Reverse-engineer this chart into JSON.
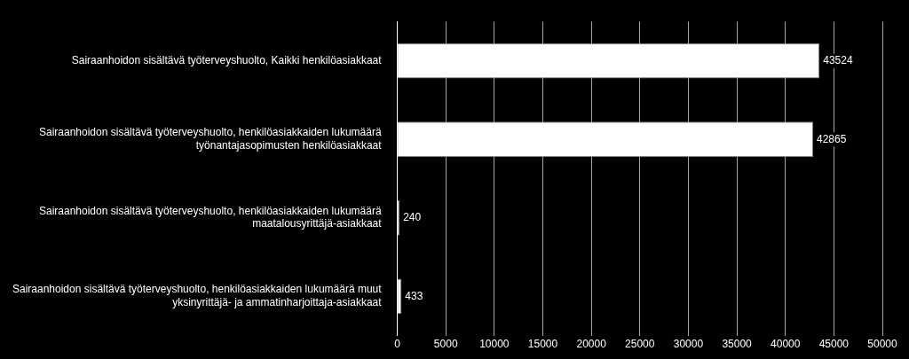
{
  "chart_data": {
    "type": "bar",
    "orientation": "horizontal",
    "categories": [
      "Sairaanhoidon sisältävä työterveyshuolto, Kaikki henkilöasiakkaat",
      "Sairaanhoidon sisältävä työterveyshuolto, henkilöasiakkaiden lukumäärä\ntyönantajasopimusten henkilöasiakkaat",
      "Sairaanhoidon sisältävä työterveyshuolto, henkilöasiakkaiden lukumäärä\nmaatalousyrittäjä-asiakkaat",
      "Sairaanhoidon sisältävä työterveyshuolto, henkilöasiakkaiden lukumäärä muut\nyksinyrittäjä- ja ammatinharjoittaja-asiakkaat"
    ],
    "values": [
      43524,
      42865,
      240,
      433
    ],
    "color": "#ffffff",
    "xlim": [
      0,
      50000
    ],
    "xticks": [
      0,
      5000,
      10000,
      15000,
      20000,
      25000,
      30000,
      35000,
      40000,
      45000,
      50000
    ],
    "grid": "x",
    "legend": false,
    "data_labels": true
  }
}
